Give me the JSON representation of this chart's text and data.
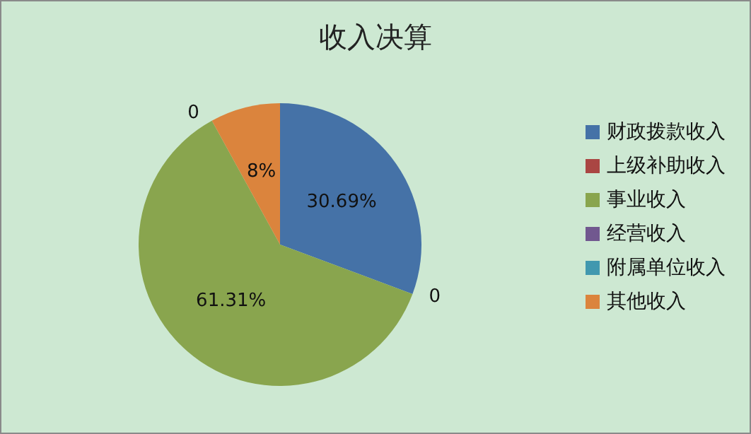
{
  "chart_data": {
    "type": "pie",
    "title": "收入决算",
    "categories": [
      "财政拨款收入",
      "上级补助收入",
      "事业收入",
      "经营收入",
      "附属单位收入",
      "其他收入"
    ],
    "values": [
      30.69,
      0,
      61.31,
      0,
      0,
      8
    ],
    "colors": [
      "#4572a7",
      "#aa4643",
      "#89a54e",
      "#71588f",
      "#4198af",
      "#db843d"
    ],
    "value_labels": [
      "30.69%",
      "0",
      "61.31%",
      "0",
      null,
      "8%"
    ],
    "legend": "right"
  }
}
